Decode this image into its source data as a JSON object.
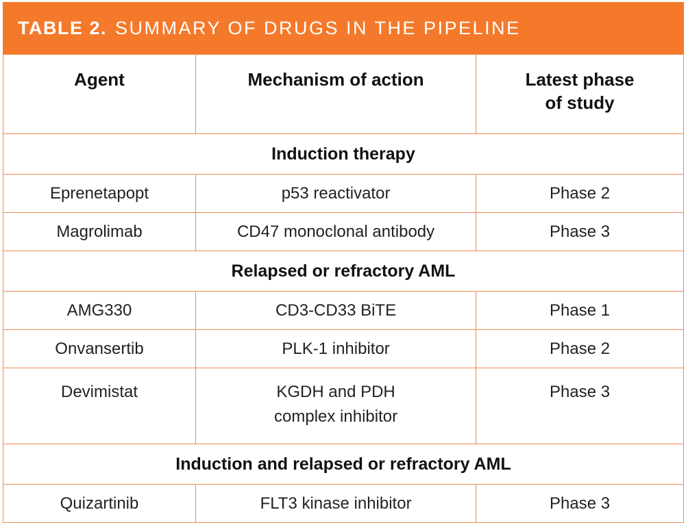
{
  "title": {
    "tag": "TABLE 2.",
    "heading": "SUMMARY OF DRUGS IN THE PIPELINE"
  },
  "columns": [
    "Agent",
    "Mechanism of action",
    "Latest phase of study"
  ],
  "sections": [
    {
      "header": "Induction therapy",
      "rows": [
        {
          "agent": "Eprenetapopt",
          "mechanism": "p53 reactivator",
          "phase": "Phase 2"
        },
        {
          "agent": "Magrolimab",
          "mechanism": "CD47 monoclonal antibody",
          "phase": "Phase 3"
        }
      ]
    },
    {
      "header": "Relapsed or refractory AML",
      "rows": [
        {
          "agent": "AMG330",
          "mechanism": "CD3-CD33 BiTE",
          "phase": "Phase 1"
        },
        {
          "agent": "Onvansertib",
          "mechanism": "PLK-1 inhibitor",
          "phase": "Phase 2"
        },
        {
          "agent": "Devimistat",
          "mechanism": "KGDH and PDH complex inhibitor",
          "phase": "Phase 3"
        }
      ]
    },
    {
      "header": "Induction and relapsed or refractory AML",
      "rows": [
        {
          "agent": "Quizartinib",
          "mechanism": "FLT3 kinase inhibitor",
          "phase": "Phase 3"
        }
      ]
    }
  ],
  "colors": {
    "accent_orange": "#F4792B",
    "grid_orange": "#EF8A4D",
    "text_dark": "#231F20"
  }
}
